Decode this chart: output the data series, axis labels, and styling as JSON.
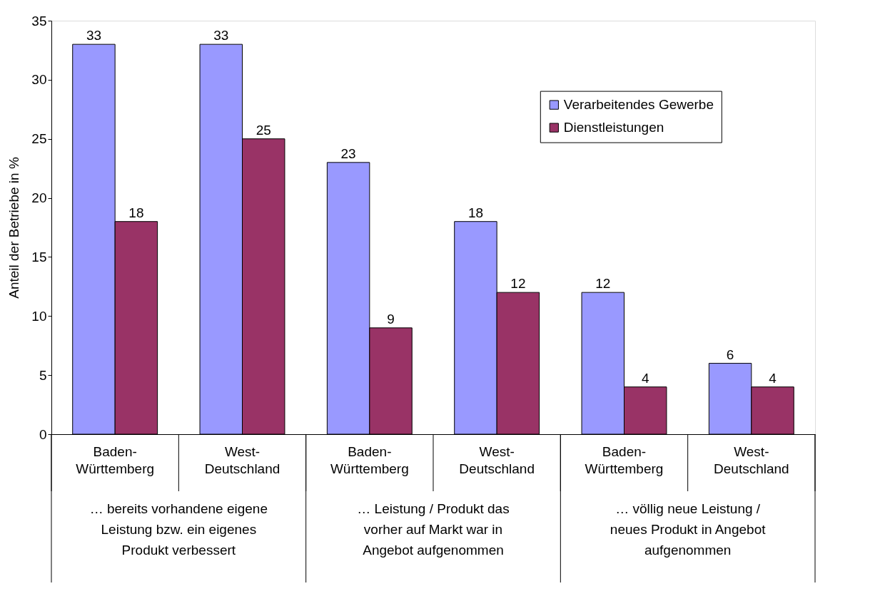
{
  "chart_data": {
    "type": "bar",
    "ylabel": "Anteil der Betriebe in %",
    "categories": [
      "Baden-Württemberg",
      "West-Deutschland",
      "Baden-Württemberg",
      "West-Deutschland",
      "Baden-Württemberg",
      "West-Deutschland"
    ],
    "series": [
      {
        "name": "Verarbeitendes Gewerbe",
        "color": "#9999ff",
        "values": [
          33,
          33,
          23,
          18,
          12,
          6
        ]
      },
      {
        "name": "Dienstleistungen",
        "color": "#993366",
        "values": [
          18,
          25,
          9,
          12,
          4,
          4
        ]
      }
    ],
    "annotations": [
      "… bereits vorhandene eigene Leistung bzw. ein eigenes Produkt verbessert",
      "… Leistung / Produkt das vorher auf Markt war in Angebot aufgenommen",
      "… völlig neue Leistung / neues Produkt in Angebot aufgenommen"
    ],
    "ylim": [
      0,
      35
    ],
    "yticks": [
      0,
      5,
      10,
      15,
      20,
      25,
      30,
      35
    ],
    "data_labels": true,
    "grid": false,
    "legend": "top right"
  }
}
